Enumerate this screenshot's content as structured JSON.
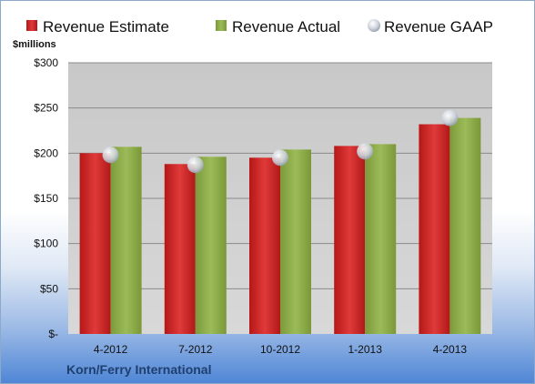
{
  "chart_data": {
    "type": "bar",
    "categories": [
      "4-2012",
      "7-2012",
      "10-2012",
      "1-2013",
      "4-2013"
    ],
    "series": [
      {
        "name": "Revenue Estimate",
        "values": [
          200,
          188,
          195,
          208,
          232
        ],
        "marker": "bar"
      },
      {
        "name": "Revenue Actual",
        "values": [
          207,
          196,
          204,
          210,
          239
        ],
        "marker": "bar"
      },
      {
        "name": "Revenue GAAP",
        "values": [
          198,
          187,
          195,
          202,
          239
        ],
        "marker": "circle"
      }
    ],
    "ylabel": "$millions",
    "ylim": [
      0,
      300
    ],
    "yticks": [
      0,
      50,
      100,
      150,
      200,
      250,
      300
    ],
    "ytick_labels": [
      "$-",
      "$50",
      "$100",
      "$150",
      "$200",
      "$250",
      "$300"
    ],
    "grid": true,
    "legend_position": "top",
    "colors": {
      "estimate": "#d32a2a",
      "actual": "#8fae4a",
      "gaap": "#c9cfd8",
      "plot_bg": "#cfcfcf"
    }
  },
  "footer": {
    "company": "Korn/Ferry International"
  }
}
